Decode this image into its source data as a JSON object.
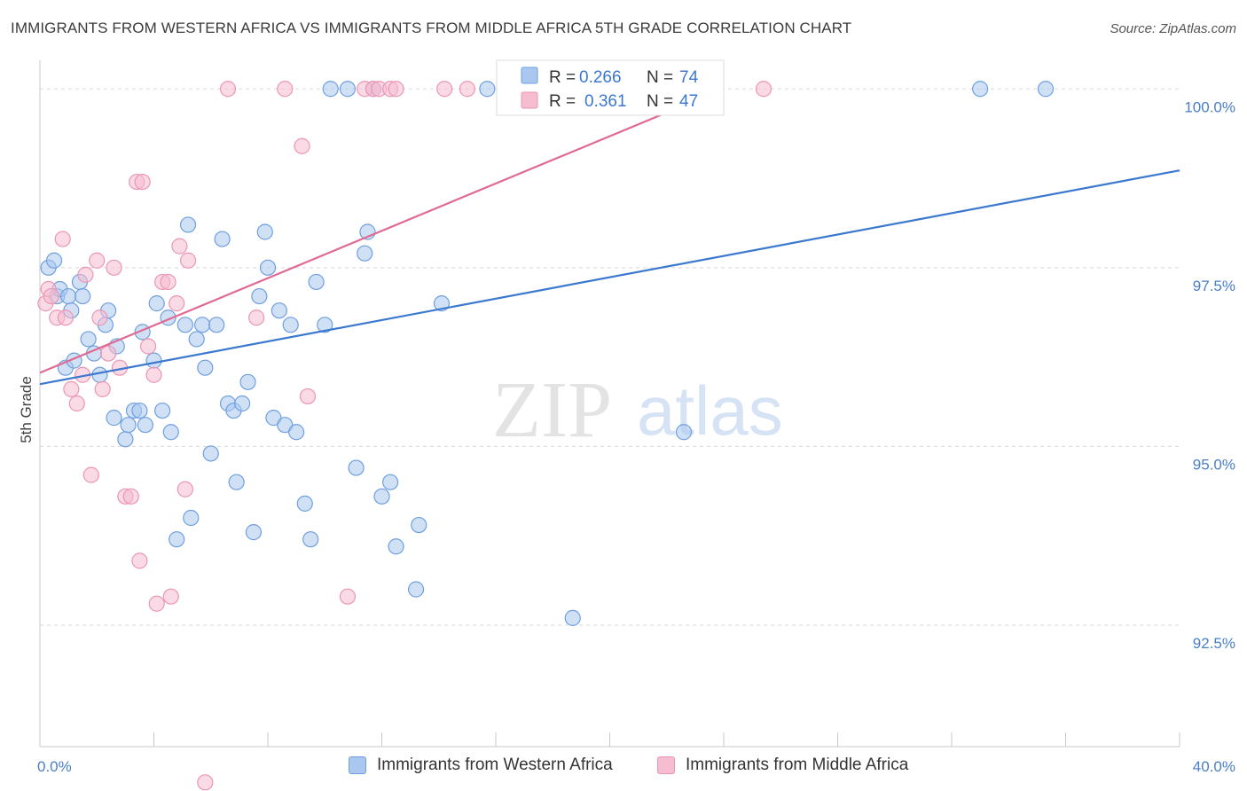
{
  "title": "IMMIGRANTS FROM WESTERN AFRICA VS IMMIGRANTS FROM MIDDLE AFRICA 5TH GRADE CORRELATION CHART",
  "source": "Source: ZipAtlas.com",
  "watermark": {
    "zip": "ZIP",
    "atlas": "atlas"
  },
  "colors": {
    "blue": "#3b78d0",
    "blue_fill": "#aac8ef",
    "blue_stroke": "#6f9fe0",
    "pink": "#e06a93",
    "pink_fill": "#f6bccf",
    "pink_stroke": "#ec95b3",
    "grid": "#d8d8d8",
    "axis_text": "#4a7fc7"
  },
  "chart_data": {
    "type": "scatter",
    "xlabel": "",
    "ylabel": "5th Grade",
    "xlim": [
      0,
      40
    ],
    "ylim": [
      90.8,
      100.4
    ],
    "x_tick_labels": [
      {
        "value": 0,
        "label": "0.0%"
      },
      {
        "value": 40,
        "label": "40.0%"
      }
    ],
    "y_tick_labels": [
      {
        "value": 100.0,
        "label": "100.0%"
      },
      {
        "value": 97.5,
        "label": "97.5%"
      },
      {
        "value": 95.0,
        "label": "95.0%"
      },
      {
        "value": 92.5,
        "label": "92.5%"
      }
    ],
    "legend": {
      "entries": [
        {
          "r_label": "R = ",
          "r_value": "0.266",
          "n_label": "N = ",
          "n_value": "74"
        },
        {
          "r_label": "R = ",
          "r_value": "0.361",
          "n_label": "N = ",
          "n_value": "47"
        }
      ]
    },
    "series": [
      {
        "name": "Immigrants from Western Africa",
        "trend": {
          "x0": 0,
          "y0": 95.87,
          "x1": 40,
          "y1": 98.86
        },
        "points": [
          [
            0.3,
            97.5
          ],
          [
            0.5,
            97.6
          ],
          [
            0.6,
            97.1
          ],
          [
            0.7,
            97.2
          ],
          [
            0.9,
            96.1
          ],
          [
            1.0,
            97.1
          ],
          [
            1.1,
            96.9
          ],
          [
            1.2,
            96.2
          ],
          [
            1.4,
            97.3
          ],
          [
            1.5,
            97.1
          ],
          [
            1.7,
            96.5
          ],
          [
            1.9,
            96.3
          ],
          [
            2.1,
            96.0
          ],
          [
            2.3,
            96.7
          ],
          [
            2.4,
            96.9
          ],
          [
            2.6,
            95.4
          ],
          [
            2.7,
            96.4
          ],
          [
            3.0,
            95.1
          ],
          [
            3.1,
            95.3
          ],
          [
            3.3,
            95.5
          ],
          [
            3.5,
            95.5
          ],
          [
            3.6,
            96.6
          ],
          [
            3.7,
            95.3
          ],
          [
            4.0,
            96.2
          ],
          [
            4.1,
            97.0
          ],
          [
            4.3,
            95.5
          ],
          [
            4.5,
            96.8
          ],
          [
            4.6,
            95.2
          ],
          [
            4.8,
            93.7
          ],
          [
            5.1,
            96.7
          ],
          [
            5.2,
            98.1
          ],
          [
            5.3,
            94.0
          ],
          [
            5.5,
            96.5
          ],
          [
            5.7,
            96.7
          ],
          [
            5.8,
            96.1
          ],
          [
            6.0,
            94.9
          ],
          [
            6.2,
            96.7
          ],
          [
            6.4,
            97.9
          ],
          [
            6.6,
            95.6
          ],
          [
            6.8,
            95.5
          ],
          [
            6.9,
            94.5
          ],
          [
            7.1,
            95.6
          ],
          [
            7.3,
            95.9
          ],
          [
            7.5,
            93.8
          ],
          [
            7.7,
            97.1
          ],
          [
            7.9,
            98.0
          ],
          [
            8.0,
            97.5
          ],
          [
            8.2,
            95.4
          ],
          [
            8.4,
            96.9
          ],
          [
            8.6,
            95.3
          ],
          [
            8.8,
            96.7
          ],
          [
            9.0,
            95.2
          ],
          [
            9.3,
            94.2
          ],
          [
            9.5,
            93.7
          ],
          [
            9.7,
            97.3
          ],
          [
            10.0,
            96.7
          ],
          [
            10.2,
            100.0
          ],
          [
            10.8,
            100.0
          ],
          [
            11.1,
            94.7
          ],
          [
            11.4,
            97.7
          ],
          [
            11.5,
            98.0
          ],
          [
            11.7,
            100.0
          ],
          [
            12.0,
            94.3
          ],
          [
            12.3,
            94.5
          ],
          [
            12.5,
            93.6
          ],
          [
            13.2,
            93.0
          ],
          [
            13.3,
            93.9
          ],
          [
            14.1,
            97.0
          ],
          [
            15.7,
            100.0
          ],
          [
            16.4,
            100.0
          ],
          [
            18.7,
            92.6
          ],
          [
            22.6,
            95.2
          ],
          [
            33.0,
            100.0
          ],
          [
            35.3,
            100.0
          ]
        ]
      },
      {
        "name": "Immigrants from Middle Africa",
        "trend": {
          "x0": 0,
          "y0": 96.03,
          "x1": 24.0,
          "y1": 100.0
        },
        "points": [
          [
            0.2,
            97.0
          ],
          [
            0.3,
            97.2
          ],
          [
            0.4,
            97.1
          ],
          [
            0.6,
            96.8
          ],
          [
            0.8,
            97.9
          ],
          [
            0.9,
            96.8
          ],
          [
            1.1,
            95.8
          ],
          [
            1.3,
            95.6
          ],
          [
            1.5,
            96.0
          ],
          [
            1.6,
            97.4
          ],
          [
            1.8,
            94.6
          ],
          [
            2.0,
            97.6
          ],
          [
            2.1,
            96.8
          ],
          [
            2.2,
            95.8
          ],
          [
            2.4,
            96.3
          ],
          [
            2.6,
            97.5
          ],
          [
            2.8,
            96.1
          ],
          [
            3.0,
            94.3
          ],
          [
            3.2,
            94.3
          ],
          [
            3.4,
            98.7
          ],
          [
            3.5,
            93.4
          ],
          [
            3.6,
            98.7
          ],
          [
            3.8,
            96.4
          ],
          [
            4.0,
            96.0
          ],
          [
            4.1,
            92.8
          ],
          [
            4.3,
            97.3
          ],
          [
            4.5,
            97.3
          ],
          [
            4.6,
            92.9
          ],
          [
            4.8,
            97.0
          ],
          [
            4.9,
            97.8
          ],
          [
            5.1,
            94.4
          ],
          [
            5.2,
            97.6
          ],
          [
            5.8,
            90.3
          ],
          [
            6.6,
            100.0
          ],
          [
            7.6,
            96.8
          ],
          [
            8.6,
            100.0
          ],
          [
            9.2,
            99.2
          ],
          [
            9.4,
            95.7
          ],
          [
            10.8,
            92.9
          ],
          [
            11.4,
            100.0
          ],
          [
            11.7,
            100.0
          ],
          [
            11.9,
            100.0
          ],
          [
            12.3,
            100.0
          ],
          [
            12.5,
            100.0
          ],
          [
            14.2,
            100.0
          ],
          [
            15.0,
            100.0
          ],
          [
            25.4,
            100.0
          ]
        ]
      }
    ]
  }
}
